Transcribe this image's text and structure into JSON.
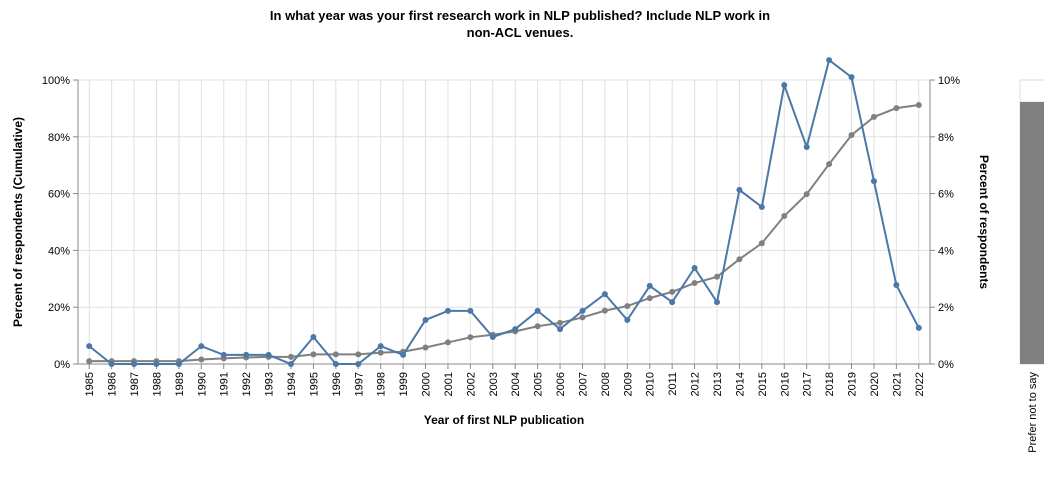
{
  "chart_data": [
    {
      "type": "line",
      "title": [
        "In what year was your first research work in NLP published? Include NLP work in",
        "non-ACL venues."
      ],
      "x_label": "Year of first NLP publication",
      "y_label": "Percent of respondents (Cumulative)",
      "y2_label": "Percent of respondents",
      "categories": [
        "1985",
        "1986",
        "1987",
        "1988",
        "1989",
        "1990",
        "1991",
        "1992",
        "1993",
        "1994",
        "1995",
        "1996",
        "1997",
        "1998",
        "1999",
        "2000",
        "2001",
        "2002",
        "2003",
        "2004",
        "2005",
        "2006",
        "2007",
        "2008",
        "2009",
        "2010",
        "2011",
        "2012",
        "2013",
        "2014",
        "2015",
        "2016",
        "2017",
        "2018",
        "2019",
        "2020",
        "2021",
        "2022"
      ],
      "series": [
        {
          "color": "#808080",
          "values": [
            1,
            1,
            1,
            1,
            1,
            1.6,
            2,
            2.3,
            2.5,
            2.5,
            3.4,
            3.4,
            3.4,
            4,
            4.3,
            5.8,
            7.6,
            9.4,
            10.3,
            11.5,
            13.3,
            14.5,
            16.4,
            18.8,
            20.4,
            23.2,
            25.4,
            28.5,
            30.7,
            36.9,
            42.5,
            52.1,
            59.8,
            70.4,
            80.6,
            87,
            90.1,
            91.2
          ]
        },
        {
          "color": "#4c78a8",
          "axis": "y2",
          "values": [
            0.63,
            0,
            0,
            0,
            0,
            0.63,
            0.32,
            0.32,
            0.32,
            0,
            0.95,
            0,
            0,
            0.63,
            0.32,
            1.55,
            1.87,
            1.87,
            0.95,
            1.23,
            1.87,
            1.23,
            1.87,
            2.46,
            1.55,
            2.75,
            2.18,
            3.38,
            2.18,
            6.13,
            5.53,
            9.82,
            7.64,
            10.7,
            10.1,
            6.44,
            2.78,
            1.27
          ]
        }
      ],
      "ylim": [
        0,
        100
      ],
      "yticks": [
        {
          "value": 0,
          "label": "0%"
        },
        {
          "value": 20,
          "label": "20%"
        },
        {
          "value": 40,
          "label": "40%"
        },
        {
          "value": 60,
          "label": "60%"
        },
        {
          "value": 80,
          "label": "80%"
        },
        {
          "value": 100,
          "label": "100%"
        }
      ],
      "y2lim": [
        0,
        10
      ],
      "y2ticks": [
        {
          "value": 0,
          "label": "0%"
        },
        {
          "value": 2,
          "label": "2%"
        },
        {
          "value": 4,
          "label": "4%"
        },
        {
          "value": 6,
          "label": "6%"
        },
        {
          "value": 8,
          "label": "8%"
        },
        {
          "value": 10,
          "label": "10%"
        }
      ],
      "grid": true
    },
    {
      "type": "bar",
      "categories": [
        "Prefer not to say"
      ],
      "values": [
        92.3
      ],
      "ylim": [
        0,
        100
      ],
      "color": "#808080"
    }
  ]
}
